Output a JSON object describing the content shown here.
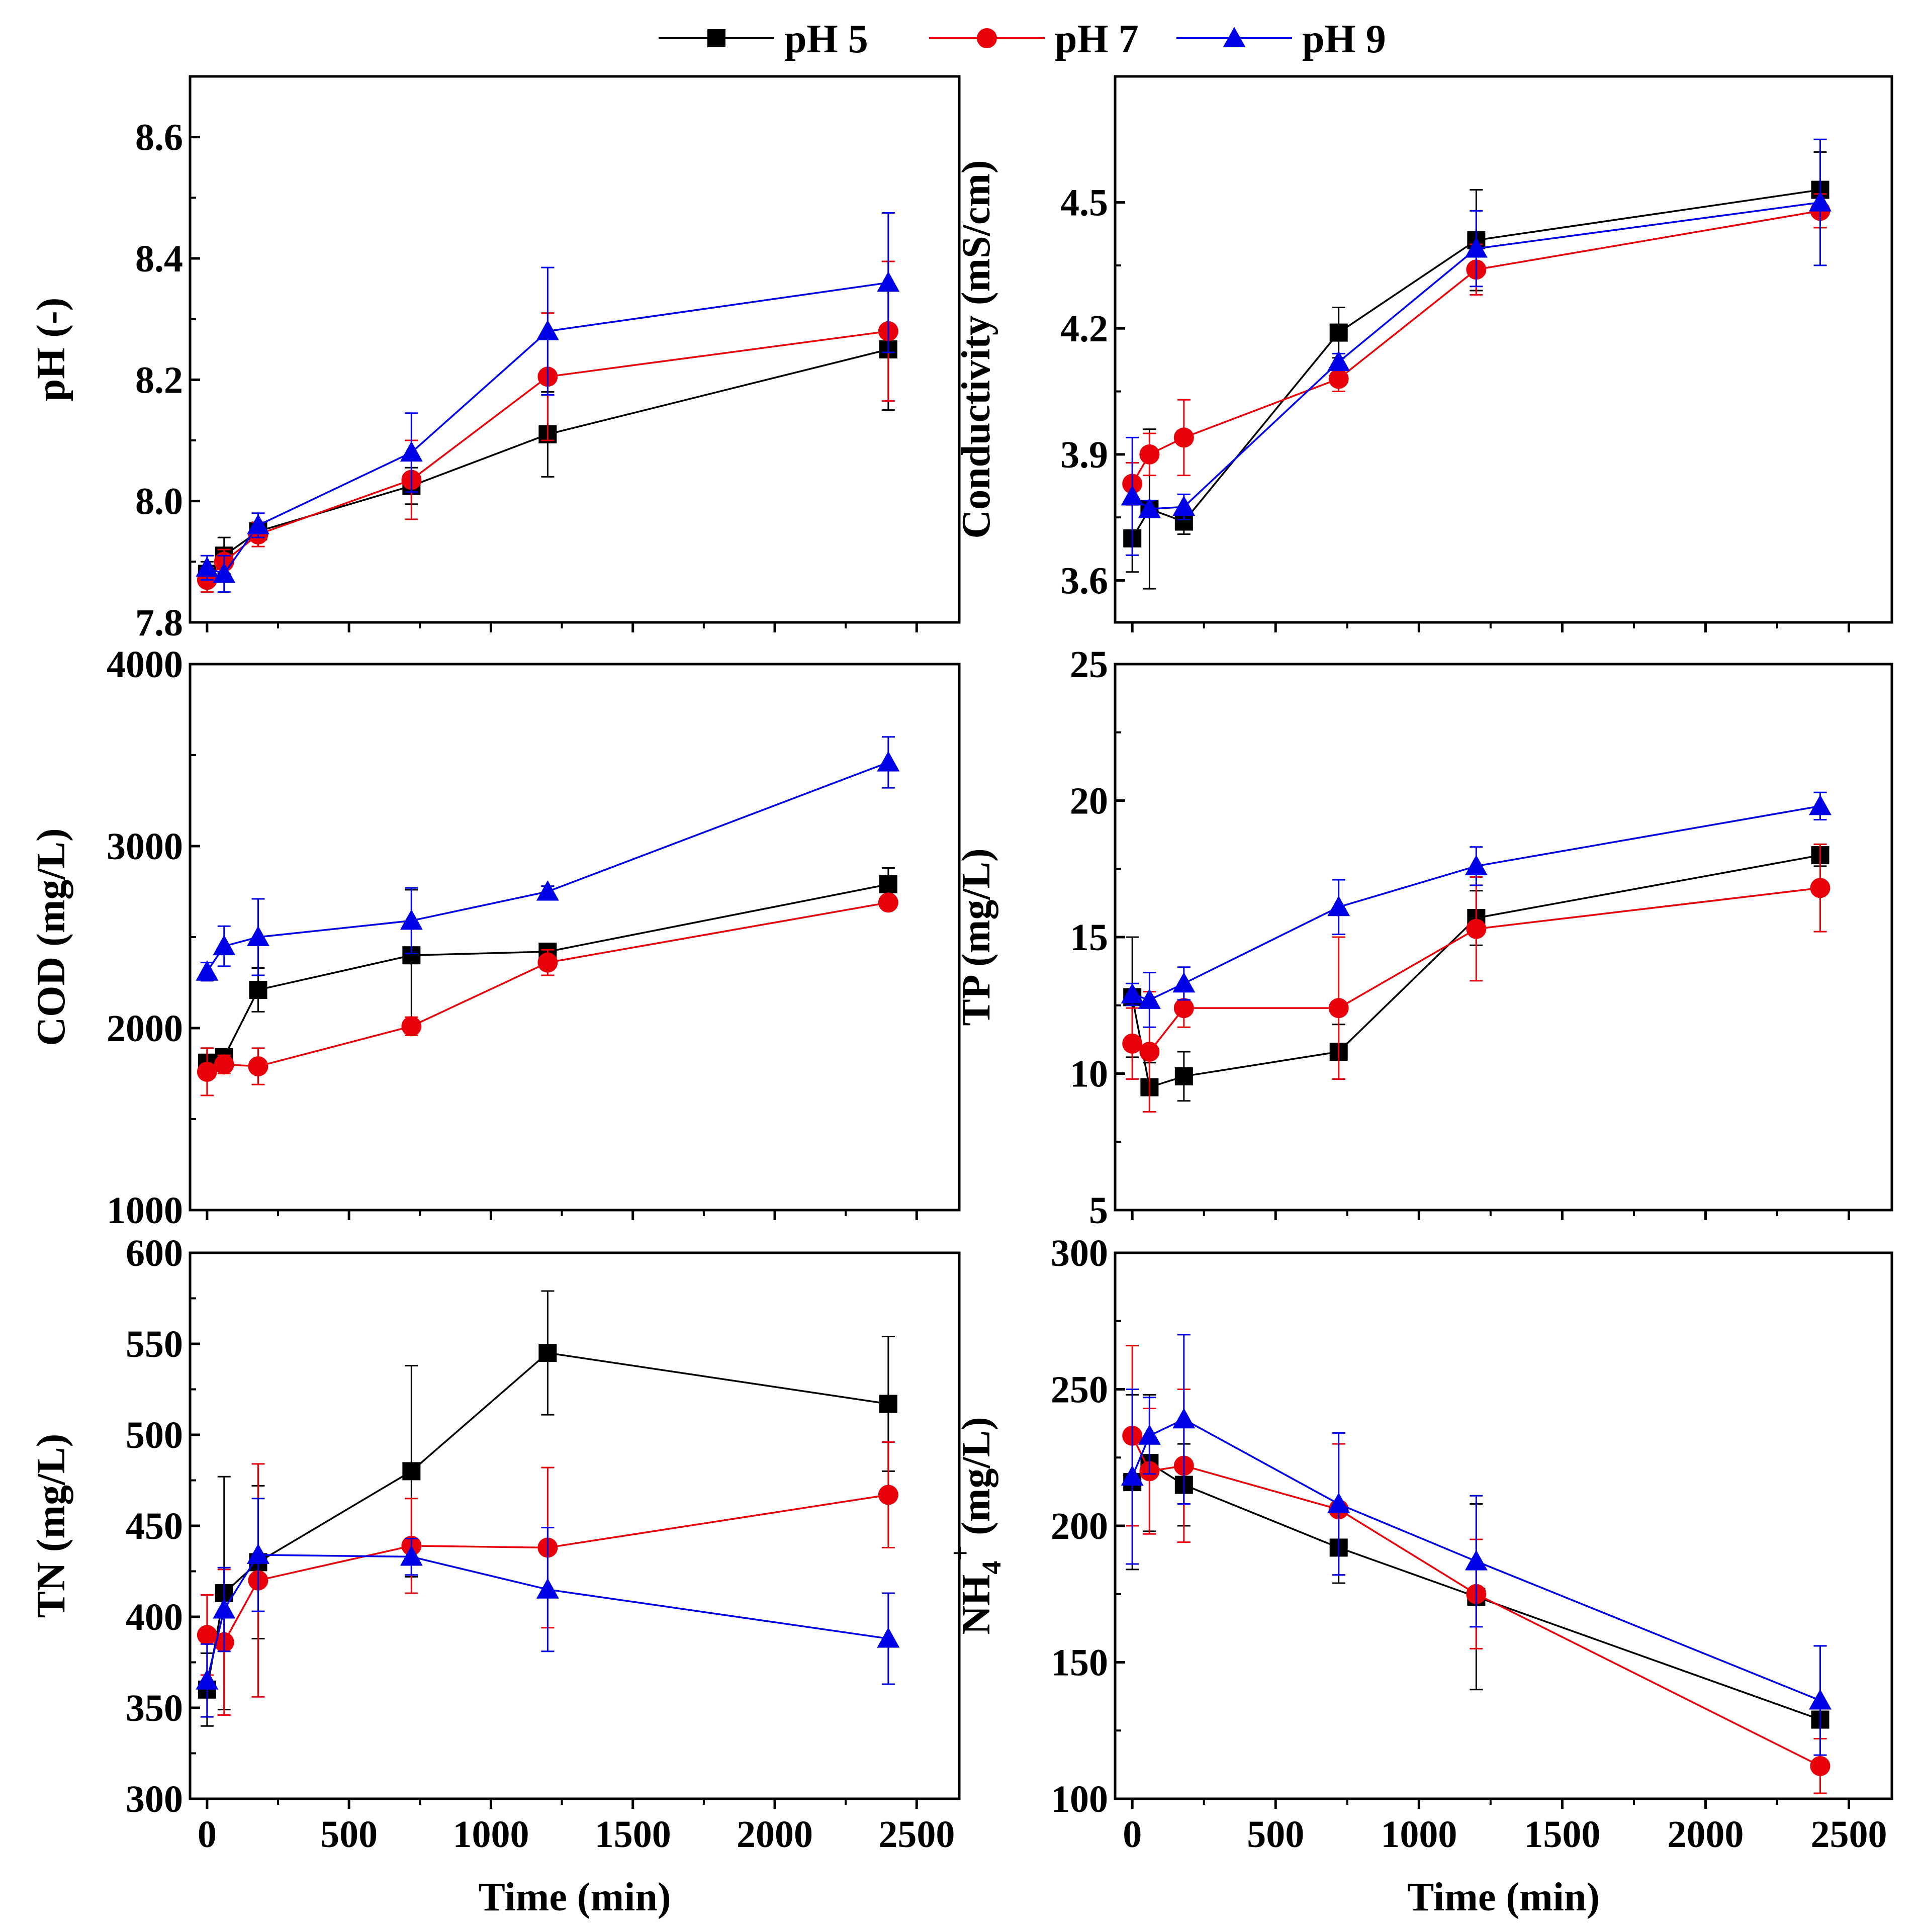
{
  "chart_data": {
    "type": "line",
    "legend": {
      "position": "top-center",
      "entries": [
        {
          "name": "pH 5",
          "color": "#000000",
          "marker": "square"
        },
        {
          "name": "pH 7",
          "color": "#e8000b",
          "marker": "circle"
        },
        {
          "name": "pH 9",
          "color": "#0000e6",
          "marker": "triangle"
        }
      ]
    },
    "x": [
      0,
      60,
      180,
      720,
      1200,
      2400
    ],
    "panels": [
      {
        "id": "ph",
        "ylabel": "pH (-)",
        "xlabel": "",
        "xlim": [
          -60,
          2650
        ],
        "ylim": [
          7.8,
          8.7
        ],
        "yticks": [
          7.8,
          8.0,
          8.2,
          8.4,
          8.6
        ],
        "ytick_labels": [
          "7.8",
          "8.0",
          "8.2",
          "8.4",
          "8.6"
        ],
        "xticks": [
          0,
          500,
          1000,
          1500,
          2000,
          2500
        ],
        "xtick_labels": [],
        "series": [
          {
            "name": "pH 5",
            "values": [
              7.88,
              7.91,
              7.95,
              8.025,
              8.11,
              8.25
            ],
            "errors": [
              0.02,
              0.03,
              0.015,
              0.03,
              0.07,
              0.1
            ]
          },
          {
            "name": "pH 7",
            "values": [
              7.87,
              7.9,
              7.945,
              8.035,
              8.205,
              8.28
            ],
            "errors": [
              0.02,
              0.02,
              0.02,
              0.065,
              0.105,
              0.115
            ]
          },
          {
            "name": "pH 9",
            "values": [
              7.89,
              7.88,
              7.96,
              8.08,
              8.28,
              8.36
            ],
            "errors": [
              0.02,
              0.03,
              0.02,
              0.065,
              0.105,
              0.115
            ]
          }
        ]
      },
      {
        "id": "conductivity",
        "ylabel": "Conductivity (mS/cm)",
        "xlabel": "",
        "xlim": [
          -60,
          2650
        ],
        "ylim": [
          3.5,
          4.8
        ],
        "yticks": [
          3.6,
          3.9,
          4.2,
          4.5
        ],
        "ytick_labels": [
          "3.6",
          "3.9",
          "4.2",
          "4.5"
        ],
        "xticks": [
          0,
          500,
          1000,
          1500,
          2000,
          2500
        ],
        "xtick_labels": [],
        "series": [
          {
            "name": "pH 5",
            "values": [
              3.7,
              3.77,
              3.74,
              4.19,
              4.41,
              4.53
            ],
            "errors": [
              0.08,
              0.19,
              0.03,
              0.06,
              0.12,
              0.09
            ]
          },
          {
            "name": "pH 7",
            "values": [
              3.83,
              3.9,
              3.94,
              4.08,
              4.34,
              4.48
            ],
            "errors": [
              0.05,
              0.05,
              0.09,
              0.03,
              0.06,
              0.04
            ]
          },
          {
            "name": "pH 9",
            "values": [
              3.8,
              3.77,
              3.775,
              4.12,
              4.39,
              4.5
            ],
            "errors": [
              0.14,
              0.02,
              0.03,
              0.02,
              0.09,
              0.15
            ]
          }
        ]
      },
      {
        "id": "cod",
        "ylabel": "COD (mg/L)",
        "xlabel": "",
        "xlim": [
          -60,
          2650
        ],
        "ylim": [
          1000,
          4000
        ],
        "yticks": [
          1000,
          2000,
          3000,
          4000
        ],
        "ytick_labels": [
          "1000",
          "2000",
          "3000",
          "4000"
        ],
        "xticks": [
          0,
          500,
          1000,
          1500,
          2000,
          2500
        ],
        "xtick_labels": [],
        "series": [
          {
            "name": "pH 5",
            "values": [
              1810,
              1840,
              2210,
              2400,
              2420,
              2790
            ],
            "errors": [
              80,
              40,
              120,
              360,
              20,
              90
            ]
          },
          {
            "name": "pH 7",
            "values": [
              1760,
              1800,
              1790,
              2010,
              2360,
              2690
            ],
            "errors": [
              130,
              50,
              100,
              50,
              70,
              20
            ]
          },
          {
            "name": "pH 9",
            "values": [
              2310,
              2450,
              2500,
              2590,
              2750,
              3460
            ],
            "errors": [
              50,
              110,
              210,
              180,
              30,
              140
            ]
          }
        ]
      },
      {
        "id": "tp",
        "ylabel": "TP (mg/L)",
        "xlabel": "",
        "xlim": [
          -60,
          2650
        ],
        "ylim": [
          5,
          25
        ],
        "yticks": [
          5,
          10,
          15,
          20,
          25
        ],
        "ytick_labels": [
          "5",
          "10",
          "15",
          "20",
          "25"
        ],
        "xticks": [
          0,
          500,
          1000,
          1500,
          2000,
          2500
        ],
        "xtick_labels": [],
        "series": [
          {
            "name": "pH 5",
            "values": [
              12.8,
              9.5,
              9.9,
              10.8,
              15.7,
              18.0
            ],
            "errors": [
              2.2,
              0.9,
              0.9,
              1.0,
              1.0,
              0.4
            ]
          },
          {
            "name": "pH 7",
            "values": [
              11.1,
              10.8,
              12.4,
              12.4,
              15.3,
              16.8
            ],
            "errors": [
              1.3,
              2.2,
              0.7,
              2.6,
              1.9,
              1.6
            ]
          },
          {
            "name": "pH 9",
            "values": [
              12.9,
              12.7,
              13.3,
              16.1,
              17.6,
              19.8
            ],
            "errors": [
              0.4,
              1.0,
              0.6,
              1.0,
              0.7,
              0.5
            ]
          }
        ]
      },
      {
        "id": "tn",
        "ylabel": "TN (mg/L)",
        "xlabel": "Time (min)",
        "xlim": [
          -60,
          2650
        ],
        "ylim": [
          300,
          600
        ],
        "yticks": [
          300,
          350,
          400,
          450,
          500,
          550,
          600
        ],
        "ytick_labels": [
          "300",
          "350",
          "400",
          "450",
          "500",
          "550",
          "600"
        ],
        "xticks": [
          0,
          500,
          1000,
          1500,
          2000,
          2500
        ],
        "xtick_labels": [
          "0",
          "500",
          "1000",
          "1500",
          "2000",
          "2500"
        ],
        "series": [
          {
            "name": "pH 5",
            "values": [
              360,
              413,
              430,
              480,
              545,
              517
            ],
            "errors": [
              20,
              64,
              42,
              58,
              34,
              37
            ]
          },
          {
            "name": "pH 7",
            "values": [
              390,
              386,
              420,
              439,
              438,
              467
            ],
            "errors": [
              22,
              40,
              64,
              26,
              44,
              29
            ]
          },
          {
            "name": "pH 9",
            "values": [
              365,
              404,
              434,
              433,
              415,
              388
            ],
            "errors": [
              20,
              23,
              31,
              10,
              34,
              25
            ]
          }
        ]
      },
      {
        "id": "nh4",
        "ylabel": "NH4+ (mg/L)",
        "xlabel": "Time (min)",
        "xlim": [
          -60,
          2650
        ],
        "ylim": [
          100,
          300
        ],
        "yticks": [
          100,
          150,
          200,
          250,
          300
        ],
        "ytick_labels": [
          "100",
          "150",
          "200",
          "250",
          "300"
        ],
        "xticks": [
          0,
          500,
          1000,
          1500,
          2000,
          2500
        ],
        "xtick_labels": [
          "0",
          "500",
          "1000",
          "1500",
          "2000",
          "2500"
        ],
        "series": [
          {
            "name": "pH 5",
            "values": [
              216,
              223,
              215,
              192,
              174,
              129
            ],
            "errors": [
              32,
              25,
              15,
              13,
              34,
              27
            ]
          },
          {
            "name": "pH 7",
            "values": [
              233,
              220,
              222,
              206,
              175,
              112
            ],
            "errors": [
              33,
              23,
              28,
              24,
              20,
              10
            ]
          },
          {
            "name": "pH 9",
            "values": [
              218,
              233,
              239,
              208,
              187,
              136
            ],
            "errors": [
              32,
              14,
              31,
              26,
              24,
              20
            ]
          }
        ]
      }
    ]
  }
}
